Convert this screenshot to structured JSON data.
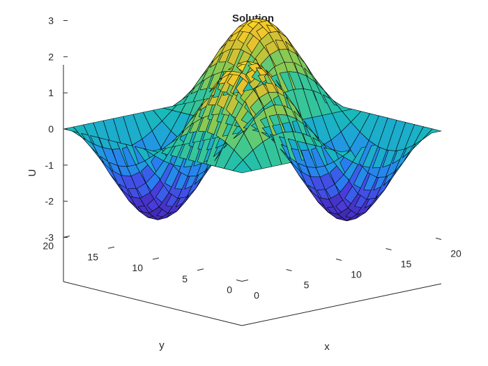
{
  "chart_data": {
    "type": "surface",
    "title": "Solution",
    "xlabel": "x",
    "ylabel": "y",
    "zlabel": "U",
    "xlim": [
      0,
      20
    ],
    "ylim": [
      0,
      20
    ],
    "zlim": [
      -3,
      3
    ],
    "x_ticks": [
      "0",
      "5",
      "10",
      "15",
      "20"
    ],
    "y_ticks": [
      "0",
      "5",
      "10",
      "15",
      "20"
    ],
    "z_ticks": [
      "-3",
      "-2",
      "-1",
      "0",
      "1",
      "2",
      "3"
    ],
    "grid": false,
    "colormap": [
      "#3e26a8",
      "#4a3ee0",
      "#2b7bf2",
      "#1fa2db",
      "#18bcb6",
      "#4bcb86",
      "#a1c842",
      "#e6be30",
      "#fbd821"
    ],
    "edge_color": "#000000",
    "surface": {
      "function": "U = 2.5 * sin(pi*x/10) * sin(pi*y/10)",
      "grid": "x,y = 0:1:20",
      "amplitude": 2.5
    }
  }
}
